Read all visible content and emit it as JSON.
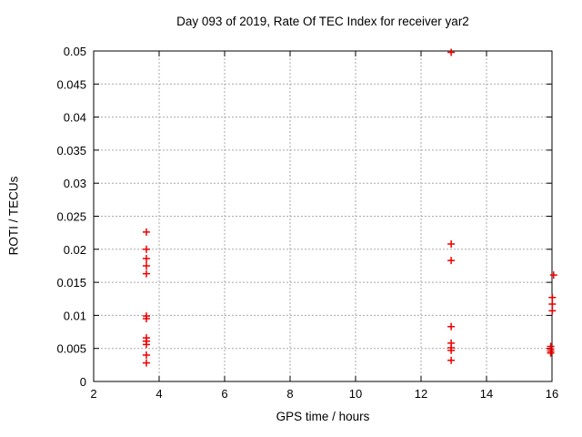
{
  "chart_data": {
    "type": "scatter",
    "title": "Day 093 of 2019, Rate Of TEC Index for receiver yar2",
    "xlabel": "GPS time / hours",
    "ylabel": "ROTI / TECUs",
    "xlim": [
      2,
      16
    ],
    "ylim": [
      0,
      0.05
    ],
    "xticks": [
      2,
      4,
      6,
      8,
      10,
      12,
      14,
      16
    ],
    "yticks": [
      {
        "value": 0,
        "label": "0"
      },
      {
        "value": 0.005,
        "label": "0.005"
      },
      {
        "value": 0.01,
        "label": "0.01"
      },
      {
        "value": 0.015,
        "label": "0.015"
      },
      {
        "value": 0.02,
        "label": "0.02"
      },
      {
        "value": 0.025,
        "label": "0.025"
      },
      {
        "value": 0.03,
        "label": "0.03"
      },
      {
        "value": 0.035,
        "label": "0.035"
      },
      {
        "value": 0.04,
        "label": "0.04"
      },
      {
        "value": 0.045,
        "label": "0.045"
      },
      {
        "value": 0.05,
        "label": "0.05"
      }
    ],
    "grid": true,
    "legend_position": "none",
    "marker": {
      "shape": "plus",
      "color": "#ee0000",
      "size": 4
    },
    "axis_color": "#000000",
    "grid_color": "#a9a9a9",
    "series": [
      {
        "name": "ROTI",
        "points": [
          {
            "x": 3.61,
            "y": 0.0226
          },
          {
            "x": 3.61,
            "y": 0.02
          },
          {
            "x": 3.61,
            "y": 0.0186
          },
          {
            "x": 3.61,
            "y": 0.0175
          },
          {
            "x": 3.61,
            "y": 0.0163
          },
          {
            "x": 3.61,
            "y": 0.0099
          },
          {
            "x": 3.61,
            "y": 0.0095
          },
          {
            "x": 3.61,
            "y": 0.0066
          },
          {
            "x": 3.61,
            "y": 0.0061
          },
          {
            "x": 3.61,
            "y": 0.0056
          },
          {
            "x": 3.61,
            "y": 0.004
          },
          {
            "x": 3.61,
            "y": 0.0028
          },
          {
            "x": 12.92,
            "y": 0.0498
          },
          {
            "x": 12.92,
            "y": 0.0208
          },
          {
            "x": 12.92,
            "y": 0.0183
          },
          {
            "x": 12.92,
            "y": 0.0083
          },
          {
            "x": 12.92,
            "y": 0.0058
          },
          {
            "x": 12.92,
            "y": 0.0051
          },
          {
            "x": 12.92,
            "y": 0.0047
          },
          {
            "x": 12.92,
            "y": 0.0032
          },
          {
            "x": 16.05,
            "y": 0.0161
          },
          {
            "x": 16.01,
            "y": 0.0127
          },
          {
            "x": 16.01,
            "y": 0.0117
          },
          {
            "x": 16.01,
            "y": 0.0107
          },
          {
            "x": 15.96,
            "y": 0.0053
          },
          {
            "x": 15.96,
            "y": 0.0049
          },
          {
            "x": 15.96,
            "y": 0.0046
          },
          {
            "x": 15.96,
            "y": 0.0043
          }
        ]
      }
    ]
  }
}
